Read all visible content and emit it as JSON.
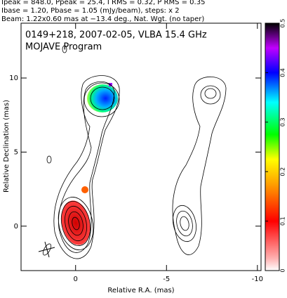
{
  "chart_data": {
    "type": "image",
    "header": [
      "Ipeak = 848.0, Ppeak = 25.4, I RMS = 0.32, P RMS = 0.35",
      "Ibase = 1.20, Pbase = 1.05 (mJy/beam), steps: x 2",
      "Beam: 1.22x0.60 mas at −13.4 deg., Nat. Wgt. (no taper)"
    ],
    "title": "0149+218, 2007-02-05, VLBA 15.4 GHz",
    "subtitle": "MOJAVE Program",
    "xlabel": "Relative R.A. (mas)",
    "ylabel": "Relative Declination (mas)",
    "xlim": [
      3,
      -10.2
    ],
    "xticks": [
      0,
      -5,
      -10
    ],
    "ylim": [
      -3,
      13.7
    ],
    "yticks": [
      0,
      5,
      10
    ],
    "clim": [
      0,
      0.5
    ],
    "cticks": [
      0,
      0.1,
      0.2,
      0.3,
      0.4,
      0.5
    ]
  }
}
